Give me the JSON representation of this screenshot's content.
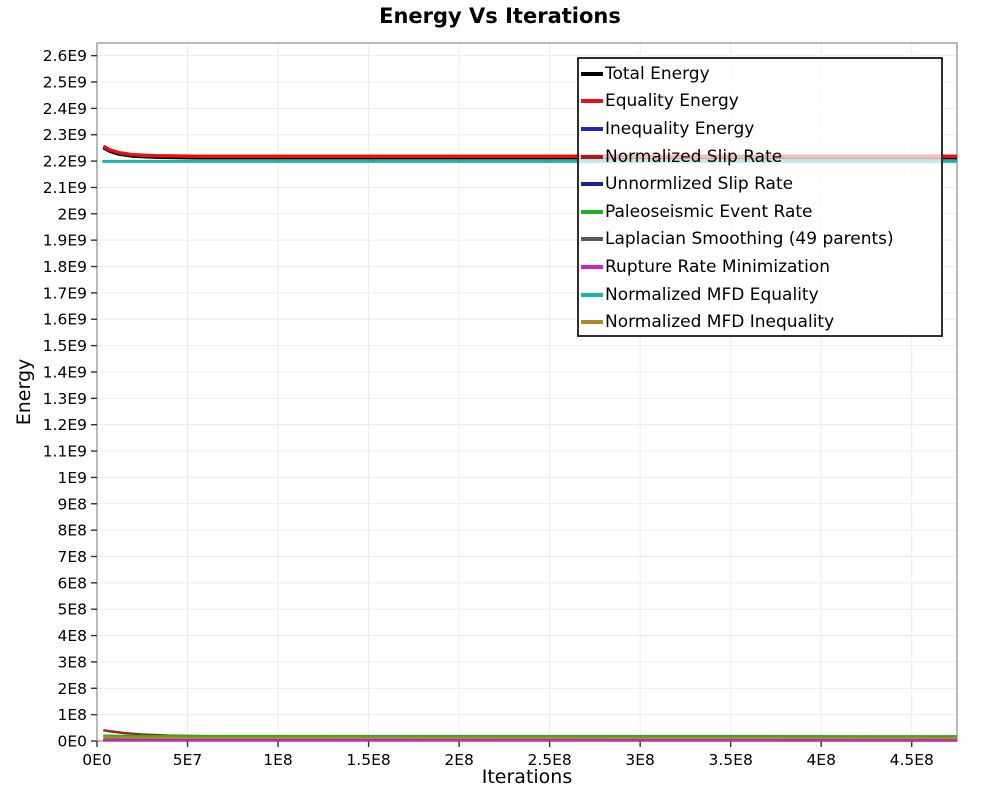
{
  "header": {
    "title": "Energy Vs Iterations"
  },
  "chart_data": {
    "type": "line",
    "title": "Energy Vs Iterations",
    "xlabel": "Iterations",
    "ylabel": "Energy",
    "xlim": [
      0,
      475000000.0
    ],
    "ylim": [
      0,
      2648000000.0
    ],
    "grid": true,
    "legend_position": "top-right",
    "grid_color": "#ececec",
    "border_color": "#a8a8a8",
    "tick_color": "#333333",
    "x_ticks": [
      {
        "value": 0,
        "label": "0E0"
      },
      {
        "value": 50000000.0,
        "label": "5E7"
      },
      {
        "value": 100000000.0,
        "label": "1E8"
      },
      {
        "value": 150000000.0,
        "label": "1.5E8"
      },
      {
        "value": 200000000.0,
        "label": "2E8"
      },
      {
        "value": 250000000.0,
        "label": "2.5E8"
      },
      {
        "value": 300000000.0,
        "label": "3E8"
      },
      {
        "value": 350000000.0,
        "label": "3.5E8"
      },
      {
        "value": 400000000.0,
        "label": "4E8"
      },
      {
        "value": 450000000.0,
        "label": "4.5E8"
      }
    ],
    "y_ticks": [
      {
        "value": 0,
        "label": "0E0"
      },
      {
        "value": 100000000.0,
        "label": "1E8"
      },
      {
        "value": 200000000.0,
        "label": "2E8"
      },
      {
        "value": 300000000.0,
        "label": "3E8"
      },
      {
        "value": 400000000.0,
        "label": "4E8"
      },
      {
        "value": 500000000.0,
        "label": "5E8"
      },
      {
        "value": 600000000.0,
        "label": "6E8"
      },
      {
        "value": 700000000.0,
        "label": "7E8"
      },
      {
        "value": 800000000.0,
        "label": "8E8"
      },
      {
        "value": 900000000.0,
        "label": "9E8"
      },
      {
        "value": 1000000000.0,
        "label": "1E9"
      },
      {
        "value": 1100000000.0,
        "label": "1.1E9"
      },
      {
        "value": 1200000000.0,
        "label": "1.2E9"
      },
      {
        "value": 1300000000.0,
        "label": "1.3E9"
      },
      {
        "value": 1400000000.0,
        "label": "1.4E9"
      },
      {
        "value": 1500000000.0,
        "label": "1.5E9"
      },
      {
        "value": 1600000000.0,
        "label": "1.6E9"
      },
      {
        "value": 1700000000.0,
        "label": "1.7E9"
      },
      {
        "value": 1800000000.0,
        "label": "1.8E9"
      },
      {
        "value": 1900000000.0,
        "label": "1.9E9"
      },
      {
        "value": 2000000000.0,
        "label": "2E9"
      },
      {
        "value": 2100000000.0,
        "label": "2.1E9"
      },
      {
        "value": 2200000000.0,
        "label": "2.2E9"
      },
      {
        "value": 2300000000.0,
        "label": "2.3E9"
      },
      {
        "value": 2400000000.0,
        "label": "2.4E9"
      },
      {
        "value": 2500000000.0,
        "label": "2.5E9"
      },
      {
        "value": 2600000000.0,
        "label": "2.6E9"
      }
    ],
    "series": [
      {
        "name": "Total Energy",
        "color": "#000000",
        "line_width": 3.5,
        "points": [
          [
            3500000.0,
            2251000000.0
          ],
          [
            7000000.0,
            2238000000.0
          ],
          [
            12000000.0,
            2227000000.0
          ],
          [
            20000000.0,
            2219000000.0
          ],
          [
            32000000.0,
            2215000000.0
          ],
          [
            55000000.0,
            2213000000.0
          ],
          [
            475000000.0,
            2213000000.0
          ]
        ]
      },
      {
        "name": "Equality Energy",
        "color": "#e81010",
        "line_width": 3.5,
        "points": [
          [
            3500000.0,
            2256000000.0
          ],
          [
            7000000.0,
            2243000000.0
          ],
          [
            12000000.0,
            2232000000.0
          ],
          [
            20000000.0,
            2224000000.0
          ],
          [
            32000000.0,
            2220000000.0
          ],
          [
            55000000.0,
            2218000000.0
          ],
          [
            475000000.0,
            2218000000.0
          ]
        ]
      },
      {
        "name": "Inequality Energy",
        "color": "#2222cc",
        "line_width": 2.2,
        "points": [
          [
            3500000.0,
            2800000.0
          ],
          [
            475000000.0,
            2200000.0
          ]
        ]
      },
      {
        "name": "Normalized Slip Rate",
        "color": "#aa1c1c",
        "line_width": 2.4,
        "points": [
          [
            3500000.0,
            41000000.0
          ],
          [
            8000000.0,
            36000000.0
          ],
          [
            15000000.0,
            30000000.0
          ],
          [
            25000000.0,
            25000000.0
          ],
          [
            40000000.0,
            20500000.0
          ],
          [
            70000000.0,
            17500000.0
          ],
          [
            130000000.0,
            15500000.0
          ],
          [
            250000000.0,
            14000000.0
          ],
          [
            475000000.0,
            13500000.0
          ]
        ]
      },
      {
        "name": "Unnormlized Slip Rate",
        "color": "#20208e",
        "line_width": 2.2,
        "points": [
          [
            3500000.0,
            3200000.0
          ],
          [
            475000000.0,
            2600000.0
          ]
        ]
      },
      {
        "name": "Paleoseismic Event Rate",
        "color": "#1db31d",
        "line_width": 2.4,
        "points": [
          [
            3500000.0,
            20000000.0
          ],
          [
            30000000.0,
            18500000.0
          ],
          [
            475000000.0,
            18000000.0
          ]
        ]
      },
      {
        "name": "Laplacian Smoothing (49 parents)",
        "color": "#5a5a5a",
        "line_width": 2.2,
        "points": [
          [
            3500000.0,
            6000000.0
          ],
          [
            475000000.0,
            4500000.0
          ]
        ]
      },
      {
        "name": "Rupture Rate Minimization",
        "color": "#cc22cc",
        "line_width": 2.2,
        "points": [
          [
            3500000.0,
            1800000.0
          ],
          [
            475000000.0,
            1500000.0
          ]
        ]
      },
      {
        "name": "Normalized MFD Equality",
        "color": "#18b2b2",
        "line_width": 3,
        "points": [
          [
            3000000.0,
            2199000000.0
          ],
          [
            475000000.0,
            2199000000.0
          ]
        ]
      },
      {
        "name": "Normalized MFD Inequality",
        "color": "#ab8b1f",
        "line_width": 2.4,
        "points": [
          [
            3500000.0,
            13500000.0
          ],
          [
            40000000.0,
            12000000.0
          ],
          [
            475000000.0,
            11500000.0
          ]
        ]
      }
    ]
  }
}
